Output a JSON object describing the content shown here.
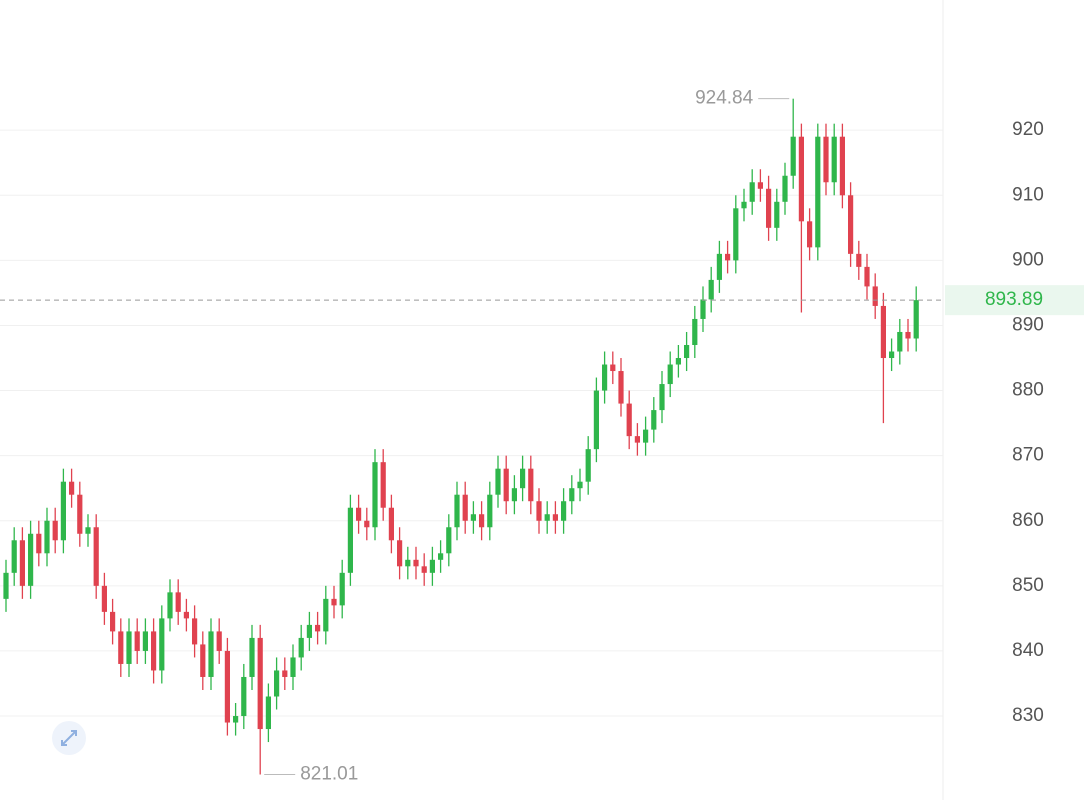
{
  "chart_data": {
    "type": "candlestick",
    "up_color": "#2fb64b",
    "down_color": "#e0424f",
    "open": [
      848,
      852,
      857,
      850,
      858,
      855,
      860,
      857,
      866,
      864,
      858,
      859,
      850,
      846,
      843,
      838,
      843,
      840,
      843,
      837,
      845,
      849,
      846,
      845,
      841,
      836,
      843,
      840,
      829,
      830,
      836,
      842,
      828,
      833,
      837,
      836,
      839,
      842,
      844,
      843,
      848,
      847,
      852,
      862,
      860,
      859,
      869,
      862,
      857,
      853,
      854,
      853,
      852,
      854,
      855,
      859,
      864,
      860,
      861,
      859,
      864,
      868,
      863,
      865,
      868,
      863,
      860,
      861,
      860,
      863,
      865,
      866,
      871,
      880,
      884,
      883,
      878,
      873,
      872,
      874,
      877,
      881,
      884,
      885,
      887,
      891,
      894,
      897,
      901,
      900,
      908,
      909,
      912,
      911,
      905,
      909,
      913,
      919,
      906,
      902,
      919,
      912,
      919,
      910,
      901,
      899,
      896,
      893,
      885,
      886,
      889,
      888
    ],
    "high": [
      854,
      859,
      859,
      860,
      860,
      862,
      862,
      868,
      868,
      866,
      861,
      861,
      852,
      848,
      845,
      845,
      845,
      845,
      845,
      847,
      851,
      851,
      848,
      847,
      843,
      845,
      845,
      842,
      832,
      838,
      844,
      844,
      835,
      839,
      839,
      841,
      844,
      846,
      846,
      850,
      850,
      854,
      864,
      864,
      862,
      871,
      871,
      864,
      859,
      856,
      856,
      855,
      856,
      857,
      861,
      866,
      866,
      863,
      863,
      866,
      870,
      870,
      867,
      870,
      870,
      865,
      863,
      863,
      865,
      867,
      868,
      873,
      882,
      886,
      886,
      885,
      880,
      875,
      876,
      879,
      883,
      886,
      887,
      889,
      893,
      896,
      899,
      903,
      903,
      910,
      911,
      914,
      914,
      913,
      911,
      915,
      924.84,
      921,
      908,
      921,
      921,
      921,
      921,
      912,
      903,
      901,
      898,
      895,
      888,
      891,
      891,
      896
    ],
    "low": [
      846,
      850,
      848,
      848,
      853,
      853,
      855,
      855,
      862,
      856,
      856,
      848,
      844,
      841,
      836,
      836,
      838,
      838,
      835,
      835,
      843,
      844,
      843,
      839,
      834,
      834,
      838,
      827,
      827,
      828,
      834,
      821.01,
      826,
      831,
      834,
      834,
      837,
      840,
      841,
      841,
      845,
      845,
      850,
      858,
      857,
      857,
      860,
      855,
      851,
      851,
      851,
      850,
      850,
      852,
      853,
      857,
      858,
      858,
      857,
      857,
      862,
      861,
      861,
      863,
      861,
      858,
      858,
      858,
      858,
      861,
      863,
      864,
      869,
      878,
      881,
      876,
      871,
      870,
      870,
      872,
      875,
      879,
      882,
      883,
      885,
      889,
      892,
      895,
      898,
      898,
      906,
      907,
      909,
      903,
      903,
      907,
      911,
      892,
      900,
      900,
      910,
      910,
      908,
      899,
      897,
      894,
      891,
      875,
      883,
      884,
      886,
      886
    ],
    "close": [
      852,
      857,
      850,
      858,
      855,
      860,
      857,
      866,
      864,
      858,
      859,
      850,
      846,
      843,
      838,
      843,
      840,
      843,
      837,
      845,
      849,
      846,
      845,
      841,
      836,
      843,
      840,
      829,
      830,
      836,
      842,
      828,
      833,
      837,
      836,
      839,
      842,
      844,
      843,
      848,
      847,
      852,
      862,
      860,
      859,
      869,
      862,
      857,
      853,
      854,
      853,
      852,
      854,
      855,
      859,
      864,
      860,
      861,
      859,
      864,
      868,
      863,
      865,
      868,
      863,
      860,
      861,
      860,
      863,
      865,
      866,
      871,
      880,
      884,
      883,
      878,
      873,
      872,
      874,
      877,
      881,
      884,
      885,
      887,
      891,
      894,
      897,
      901,
      900,
      908,
      909,
      912,
      911,
      905,
      909,
      913,
      919,
      906,
      902,
      919,
      912,
      919,
      910,
      901,
      899,
      896,
      893,
      885,
      886,
      889,
      888,
      893.89
    ],
    "ylim": [
      817.1,
      940
    ],
    "yticks": [
      830,
      840,
      850,
      860,
      870,
      880,
      890,
      900,
      910,
      920
    ],
    "grid": true,
    "last_price": 893.89,
    "high_marker": 924.84,
    "low_marker": 821.01
  }
}
